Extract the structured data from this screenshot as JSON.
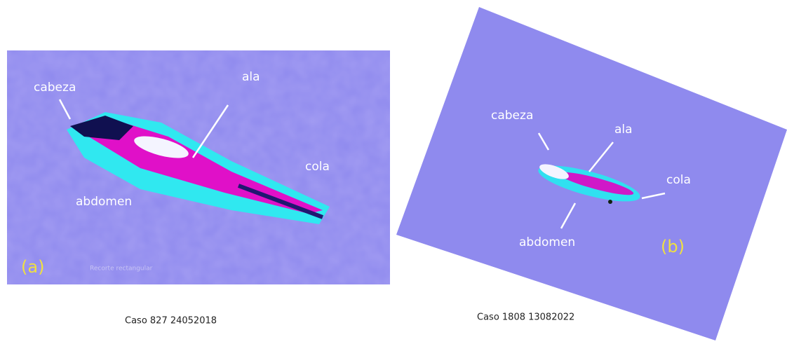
{
  "panels": [
    {
      "tag": "(a)",
      "labels": {
        "head": "cabeza",
        "wing": "ala",
        "tail": "cola",
        "abdomen": "abdomen"
      },
      "watermark": "Recorte rectangular",
      "caption": "Caso 827 24052018"
    },
    {
      "tag": "(b)",
      "labels": {
        "head": "cabeza",
        "wing": "ala",
        "tail": "cola",
        "abdomen": "abdomen"
      },
      "caption": "Caso 1808 13082022"
    }
  ]
}
